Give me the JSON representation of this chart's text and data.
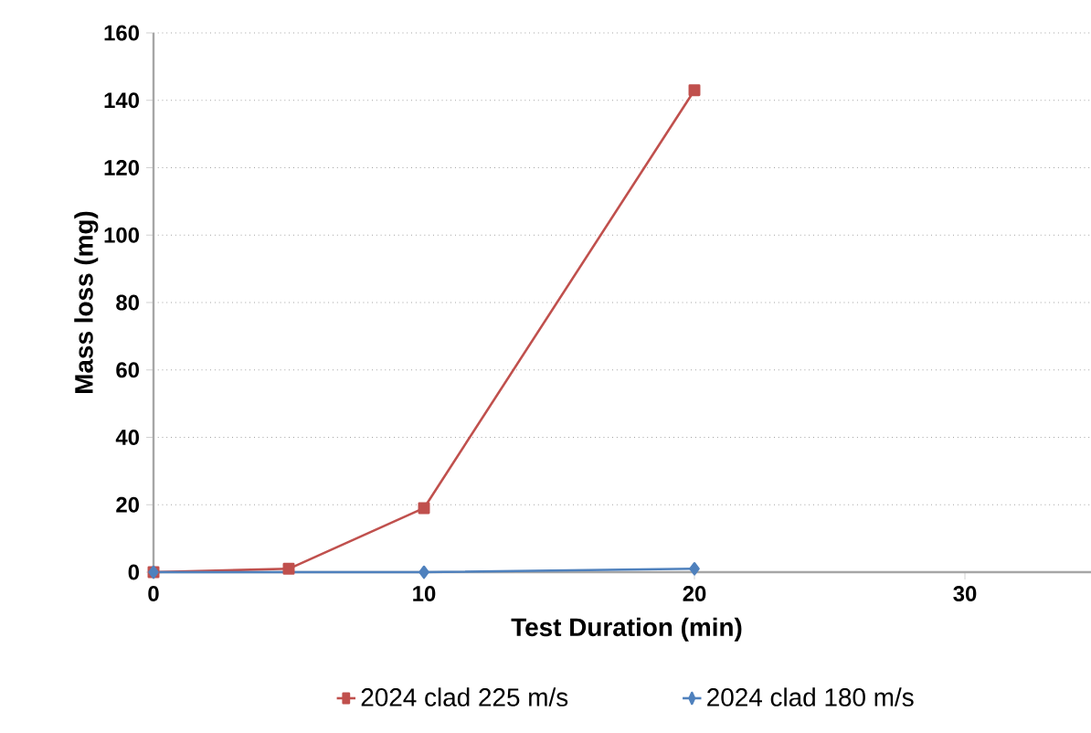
{
  "chart_data": {
    "type": "line",
    "xlabel": "Test Duration (min)",
    "ylabel": "Mass loss (mg)",
    "xlim": [
      0,
      35
    ],
    "xticks": [
      0,
      10,
      20,
      30
    ],
    "ylim": [
      0,
      160
    ],
    "yticks": [
      0,
      20,
      40,
      60,
      80,
      100,
      120,
      140,
      160
    ],
    "grid": "y",
    "legend": "bottom",
    "line_style": "solid",
    "series": [
      {
        "name": "2024 clad 225 m/s",
        "color": "#c0504d",
        "marker": "square",
        "x": [
          0,
          5,
          10,
          20
        ],
        "values": [
          0,
          1,
          19,
          143
        ]
      },
      {
        "name": "2024 clad 180 m/s",
        "color": "#4f81bd",
        "marker": "diamond",
        "x": [
          0,
          10,
          20
        ],
        "values": [
          0,
          0,
          1
        ]
      }
    ]
  }
}
